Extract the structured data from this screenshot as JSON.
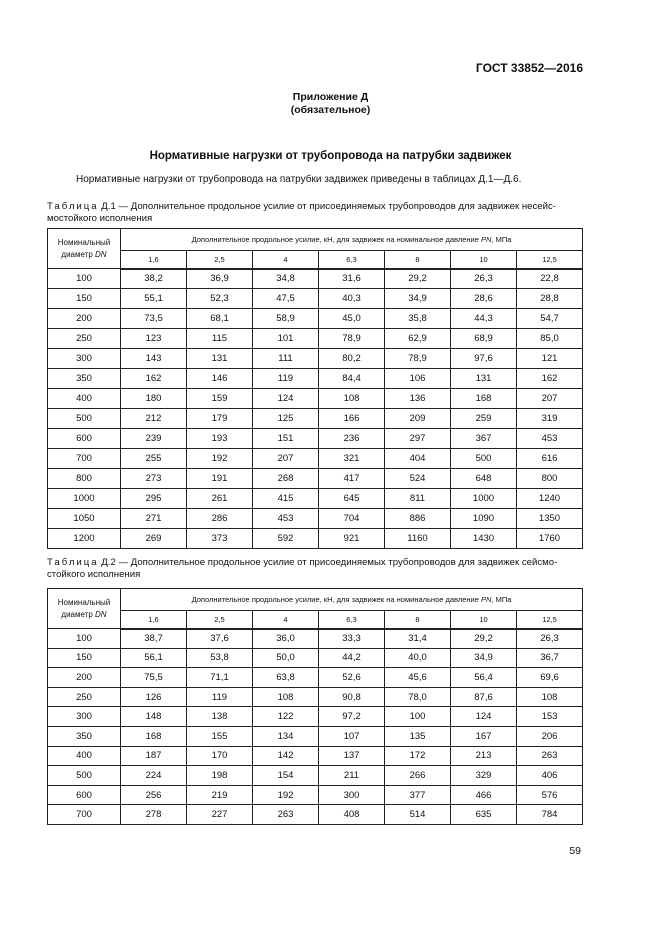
{
  "header": {
    "doc_code": "ГОСТ 33852—2016"
  },
  "annex": {
    "title": "Приложение Д",
    "subtitle": "(обязательное)"
  },
  "section_title": "Нормативные нагрузки от трубопровода на патрубки задвижек",
  "intro": "Нормативные нагрузки от трубопровода на патрубки задвижек приведены в таблицах Д.1—Д.6.",
  "tables": [
    {
      "label": "Таблица",
      "caption": " Д.1 — Дополнительное продольное усилие от присоединяемых трубопроводов для задвижек несейс-мостойкого исполнения",
      "col0": "Номинальный диаметр",
      "col0_unit": "DN",
      "group_header": "Дополнительное продольное усилие, кН, для задвижек на номинальное давление",
      "group_unit": "PN",
      "group_tail": ", МПа",
      "pressures": [
        "1,6",
        "2,5",
        "4",
        "6,3",
        "8",
        "10",
        "12,5"
      ],
      "rows": [
        [
          "100",
          "38,2",
          "36,9",
          "34,8",
          "31,6",
          "29,2",
          "26,3",
          "22,8"
        ],
        [
          "150",
          "55,1",
          "52,3",
          "47,5",
          "40,3",
          "34,9",
          "28,6",
          "28,8"
        ],
        [
          "200",
          "73,5",
          "68,1",
          "58,9",
          "45,0",
          "35,8",
          "44,3",
          "54,7"
        ],
        [
          "250",
          "123",
          "115",
          "101",
          "78,9",
          "62,9",
          "68,9",
          "85,0"
        ],
        [
          "300",
          "143",
          "131",
          "111",
          "80,2",
          "78,9",
          "97,6",
          "121"
        ],
        [
          "350",
          "162",
          "146",
          "119",
          "84,4",
          "106",
          "131",
          "162"
        ],
        [
          "400",
          "180",
          "159",
          "124",
          "108",
          "136",
          "168",
          "207"
        ],
        [
          "500",
          "212",
          "179",
          "125",
          "166",
          "209",
          "259",
          "319"
        ],
        [
          "600",
          "239",
          "193",
          "151",
          "236",
          "297",
          "367",
          "453"
        ],
        [
          "700",
          "255",
          "192",
          "207",
          "321",
          "404",
          "500",
          "616"
        ],
        [
          "800",
          "273",
          "191",
          "268",
          "417",
          "524",
          "648",
          "800"
        ],
        [
          "1000",
          "295",
          "261",
          "415",
          "645",
          "811",
          "1000",
          "1240"
        ],
        [
          "1050",
          "271",
          "286",
          "453",
          "704",
          "886",
          "1090",
          "1350"
        ],
        [
          "1200",
          "269",
          "373",
          "592",
          "921",
          "1160",
          "1430",
          "1760"
        ]
      ]
    },
    {
      "label": "Таблица",
      "caption": " Д.2 — Дополнительное продольное усилие от присоединяемых трубопроводов для задвижек сейсмо-стойкого исполнения",
      "col0": "Номинальный диаметр",
      "col0_unit": "DN",
      "group_header": "Дополнительное продольное усилие, кН, для задвижек на номинальное давление",
      "group_unit": "PN",
      "group_tail": ", МПа",
      "pressures": [
        "1,6",
        "2,5",
        "4",
        "6,3",
        "8",
        "10",
        "12,5"
      ],
      "rows": [
        [
          "100",
          "38,7",
          "37,6",
          "36,0",
          "33,3",
          "31,4",
          "29,2",
          "26,3"
        ],
        [
          "150",
          "56,1",
          "53,8",
          "50,0",
          "44,2",
          "40,0",
          "34,9",
          "36,7"
        ],
        [
          "200",
          "75,5",
          "71,1",
          "63,8",
          "52,6",
          "45,6",
          "56,4",
          "69,6"
        ],
        [
          "250",
          "126",
          "119",
          "108",
          "90,8",
          "78,0",
          "87,6",
          "108"
        ],
        [
          "300",
          "148",
          "138",
          "122",
          "97,2",
          "100",
          "124",
          "153"
        ],
        [
          "350",
          "168",
          "155",
          "134",
          "107",
          "135",
          "167",
          "206"
        ],
        [
          "400",
          "187",
          "170",
          "142",
          "137",
          "172",
          "213",
          "263"
        ],
        [
          "500",
          "224",
          "198",
          "154",
          "211",
          "266",
          "329",
          "406"
        ],
        [
          "600",
          "256",
          "219",
          "192",
          "300",
          "377",
          "466",
          "576"
        ],
        [
          "700",
          "278",
          "227",
          "263",
          "408",
          "514",
          "635",
          "784"
        ]
      ]
    }
  ],
  "page_number": "59"
}
